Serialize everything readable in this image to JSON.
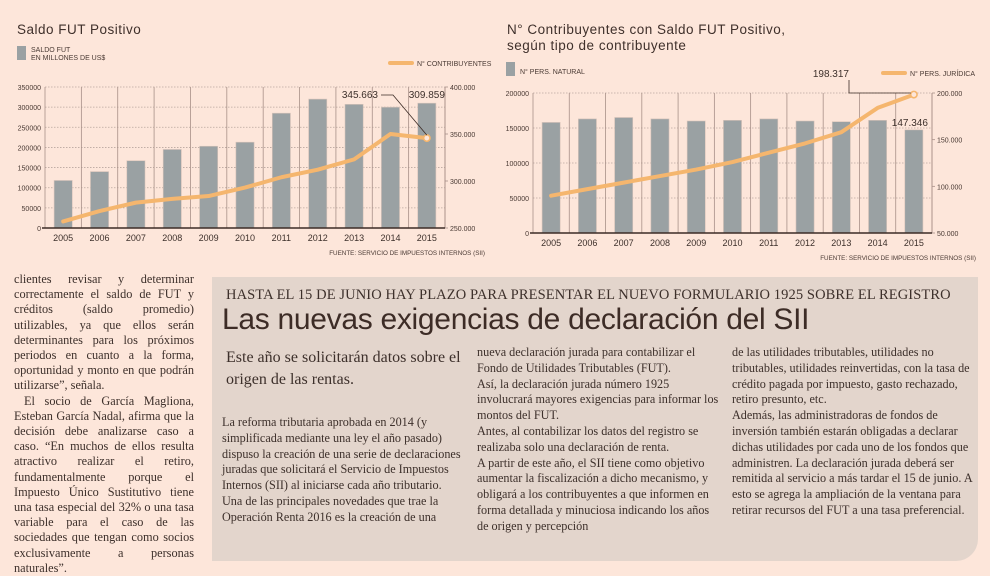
{
  "chart_data": [
    {
      "type": "bar",
      "title": "Saldo FUT Positivo",
      "categories": [
        "2005",
        "2006",
        "2007",
        "2008",
        "2009",
        "2010",
        "2011",
        "2012",
        "2013",
        "2014",
        "2015"
      ],
      "series": [
        {
          "name": "SALDO FUT EN MILLONES DE US$",
          "kind": "bar",
          "axis": "left",
          "color": "#9aa1a3",
          "values": [
            118000,
            140000,
            167000,
            195000,
            203000,
            213000,
            285000,
            320000,
            307000,
            300000,
            309859
          ]
        },
        {
          "name": "N° CONTRIBUYENTES",
          "kind": "line",
          "axis": "right",
          "color": "#f5b66e",
          "values": [
            257000,
            268000,
            277000,
            281000,
            284000,
            293000,
            304000,
            312000,
            323000,
            350000,
            345663
          ]
        }
      ],
      "legend": {
        "bar_line1": "SALDO FUT",
        "bar_line2": "EN MILLONES DE US$",
        "line": "N° CONTRIBUYENTES"
      },
      "left_axis": {
        "ylim": [
          0,
          350000
        ],
        "ticks": [
          "0",
          "50000",
          "100000",
          "150000",
          "200000",
          "250000",
          "300000",
          "350000"
        ]
      },
      "right_axis": {
        "ylim": [
          250000,
          400000
        ],
        "ticks": [
          "250.000",
          "300.000",
          "350.000",
          "400.000"
        ]
      },
      "annotations": [
        {
          "text": "345.663",
          "target": "line-2015"
        },
        {
          "text": "309.859",
          "target": "bar-2015"
        }
      ],
      "source": "FUENTE: SERVICIO DE IMPUESTOS INTERNOS (SII)",
      "grid": true
    },
    {
      "type": "bar",
      "title_line1": "N° Contribuyentes con Saldo FUT Positivo,",
      "title_line2": "según tipo de contribuyente",
      "categories": [
        "2005",
        "2006",
        "2007",
        "2008",
        "2009",
        "2010",
        "2011",
        "2012",
        "2013",
        "2014",
        "2015"
      ],
      "series": [
        {
          "name": "N° PERS. NATURAL",
          "kind": "bar",
          "axis": "left",
          "color": "#9aa1a3",
          "values": [
            158000,
            163000,
            165000,
            163000,
            160000,
            161000,
            163000,
            160000,
            159000,
            161000,
            147346
          ]
        },
        {
          "name": "N° PERS. JURÍDICA",
          "kind": "line",
          "axis": "right",
          "color": "#f5b66e",
          "values": [
            90000,
            97000,
            104000,
            111000,
            118000,
            126000,
            136000,
            146000,
            158000,
            184000,
            198317
          ]
        }
      ],
      "legend": {
        "bar": "N° PERS. NATURAL",
        "line": "N° PERS. JURÍDICA"
      },
      "left_axis": {
        "ylim": [
          0,
          200000
        ],
        "ticks": [
          "0",
          "50000",
          "100000",
          "150000",
          "200000"
        ]
      },
      "right_axis": {
        "ylim": [
          50000,
          200000
        ],
        "ticks": [
          "50.000",
          "100.000",
          "150.000",
          "200.000"
        ]
      },
      "annotations": [
        {
          "text": "198.317",
          "target": "line-2015"
        },
        {
          "text": "147.346",
          "target": "bar-2015"
        }
      ],
      "source": "FUENTE: SERVICIO DE IMPUESTOS INTERNOS (SII)",
      "grid": true
    }
  ],
  "side_column": {
    "p1": "clientes revisar y determinar correctamente el saldo de FUT y créditos (saldo promedio) utilizables, ya que ellos serán determinantes para los próximos periodos en cuanto a la forma, oportunidad y monto en que podrán utilizarse”, señala.",
    "p2": "El socio de García Magliona, Esteban García Nadal, afirma que la decisión debe analizarse caso a caso. “En muchos de ellos resulta atractivo realizar el retiro, fundamentalmente porque el Impuesto Único Sustitutivo tiene una tasa especial del 32% o una tasa variable para el caso de las sociedades que tengan como socios exclusivamente a personas naturales”."
  },
  "article": {
    "kicker": "HASTA EL 15 DE JUNIO HAY PLAZO PARA PRESENTAR EL NUEVO FORMULARIO 1925 SOBRE EL REGISTRO",
    "headline": "Las nuevas exigencias de declaración del SII",
    "deck": "Este año se solicitarán datos sobre el origen de las rentas.",
    "col1": [
      "La reforma tributaria aprobada en 2014 (y simplificada mediante una ley el año pasado) dispuso la creación de una serie de declaraciones juradas que solicitará el Servicio de Impuestos Internos (SII) al iniciarse cada año tributario.",
      "Una de las principales novedades que trae la Operación Renta 2016 es la creación de una"
    ],
    "col2": [
      "nueva declaración jurada para contabilizar el Fondo de Utilidades Tributables (FUT).",
      "Así, la declaración jurada número 1925 involucrará mayores exigencias para informar los montos del FUT.",
      "Antes, al contabilizar los datos del registro se realizaba solo una declaración de renta.",
      "A partir de este año, el SII tiene como objetivo aumentar la fiscalización a dicho mecanismo, y obligará a los contribuyentes a que informen en forma detallada y minuciosa indicando los años de origen y percepción"
    ],
    "col3": [
      "de las utilidades tributables, utilidades no tributables, utilidades reinvertidas, con la tasa de crédito pagada por impuesto, gasto rechazado, retiro presunto, etc.",
      "Además, las administradoras de fondos de inversión también estarán obligadas a declarar dichas utilidades por cada uno de los fondos que administren. La declaración jurada deberá ser remitida al servicio a más tardar el 15 de junio. A esto se agrega la ampliación de la ventana para retirar recursos del FUT a una tasa preferencial."
    ]
  }
}
